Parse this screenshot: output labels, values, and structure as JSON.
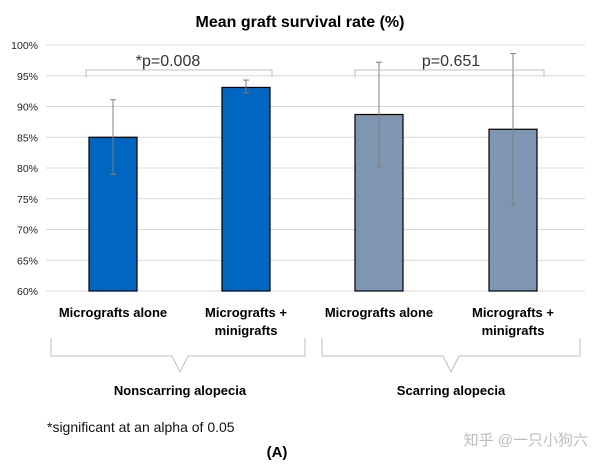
{
  "chart_data": {
    "type": "bar",
    "title": "Mean graft survival rate (%)",
    "ylim": [
      60,
      100
    ],
    "yticks": [
      "60%",
      "65%",
      "70%",
      "75%",
      "80%",
      "85%",
      "90%",
      "95%",
      "100%"
    ],
    "grid": true,
    "categories": [
      [
        "Micrografts alone"
      ],
      [
        "Micrografts +",
        "minigrafts"
      ],
      [
        "Micrografts alone"
      ],
      [
        "Micrografts +",
        "minigrafts"
      ]
    ],
    "values": [
      85.0,
      93.1,
      88.7,
      86.3
    ],
    "error_low": [
      79.0,
      92.2,
      80.2,
      74.0
    ],
    "error_high": [
      91.1,
      94.3,
      97.2,
      98.6
    ],
    "bar_colors": [
      "#0066c0",
      "#0066c0",
      "#7f96b2",
      "#7f96b2"
    ],
    "groups": [
      "Nonscarring alopecia",
      "Scarring alopecia"
    ],
    "annotations": [
      "*p=0.008",
      "p=0.651"
    ],
    "footnote": "*significant at an alpha of 0.05",
    "panel_label": "(A)"
  },
  "watermark": "知乎 @一只小狗六"
}
